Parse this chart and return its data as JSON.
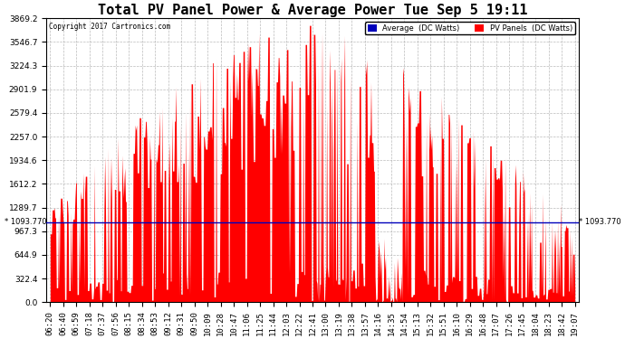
{
  "title": "Total PV Panel Power & Average Power Tue Sep 5 19:11",
  "copyright": "Copyright 2017 Cartronics.com",
  "average_value": 1093.77,
  "y_max": 3869.2,
  "y_ticks": [
    0.0,
    322.4,
    644.9,
    967.3,
    1289.7,
    1612.2,
    1934.6,
    2257.0,
    2579.4,
    2901.9,
    3224.3,
    3546.7,
    3869.2
  ],
  "x_labels": [
    "06:20",
    "06:40",
    "06:59",
    "07:18",
    "07:37",
    "07:56",
    "08:15",
    "08:34",
    "08:53",
    "09:12",
    "09:31",
    "09:50",
    "10:09",
    "10:28",
    "10:47",
    "11:06",
    "11:25",
    "11:44",
    "12:03",
    "12:22",
    "12:41",
    "13:00",
    "13:19",
    "13:38",
    "13:57",
    "14:16",
    "14:35",
    "14:54",
    "15:13",
    "15:32",
    "15:51",
    "16:10",
    "16:29",
    "16:48",
    "17:07",
    "17:26",
    "17:45",
    "18:04",
    "18:23",
    "18:42",
    "19:07"
  ],
  "legend_avg_color": "#0000bb",
  "legend_pv_color": "#ff0000",
  "background_color": "#ffffff",
  "plot_bg_color": "#ffffff",
  "area_color": "#ff0000",
  "avg_line_color": "#0000bb",
  "grid_color": "#aaaaaa",
  "title_fontsize": 11,
  "tick_fontsize": 6.5,
  "label_fontsize": 7
}
